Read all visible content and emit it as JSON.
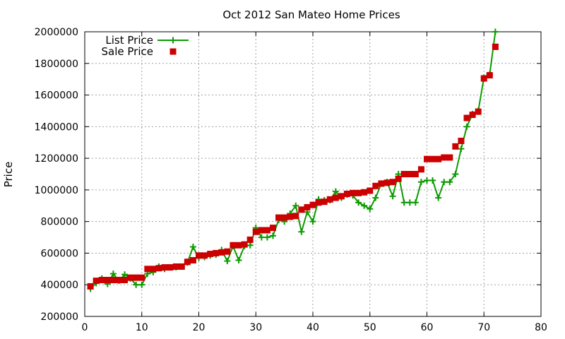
{
  "chart_data": {
    "type": "line",
    "title": "Oct 2012 San Mateo Home Prices",
    "xlabel": "",
    "ylabel": "Price",
    "xlim": [
      0,
      80
    ],
    "ylim": [
      200000,
      2000000
    ],
    "x_ticks": [
      0,
      10,
      20,
      30,
      40,
      50,
      60,
      70,
      80
    ],
    "y_ticks": [
      200000,
      400000,
      600000,
      800000,
      1000000,
      1200000,
      1400000,
      1600000,
      1800000,
      2000000
    ],
    "grid": true,
    "legend_position": "top-left",
    "series": [
      {
        "name": "List Price",
        "color": "#0b9b00",
        "marker": "plus",
        "line": true,
        "x": [
          1,
          2,
          3,
          4,
          5,
          6,
          7,
          8,
          9,
          10,
          11,
          12,
          13,
          14,
          15,
          16,
          17,
          18,
          19,
          20,
          21,
          22,
          23,
          24,
          25,
          26,
          27,
          28,
          29,
          30,
          31,
          32,
          33,
          34,
          35,
          36,
          37,
          38,
          39,
          40,
          41,
          42,
          43,
          44,
          45,
          46,
          47,
          48,
          49,
          50,
          51,
          52,
          53,
          54,
          55,
          56,
          57,
          58,
          59,
          60,
          61,
          62,
          63,
          64,
          65,
          66,
          67,
          68,
          69,
          70,
          71,
          72
        ],
        "y": [
          375000,
          410000,
          440000,
          405000,
          470000,
          425000,
          465000,
          440000,
          400000,
          400000,
          470000,
          480000,
          515000,
          500000,
          510000,
          510000,
          515000,
          540000,
          640000,
          570000,
          575000,
          585000,
          590000,
          620000,
          550000,
          645000,
          555000,
          645000,
          650000,
          760000,
          700000,
          700000,
          710000,
          810000,
          800000,
          850000,
          900000,
          735000,
          860000,
          800000,
          940000,
          935000,
          935000,
          990000,
          950000,
          970000,
          965000,
          920000,
          900000,
          880000,
          950000,
          1040000,
          1050000,
          960000,
          1100000,
          920000,
          920000,
          920000,
          1050000,
          1060000,
          1060000,
          950000,
          1050000,
          1050000,
          1100000,
          1260000,
          1400000,
          1480000,
          1500000,
          1710000,
          1730000,
          2000000
        ]
      },
      {
        "name": "Sale Price",
        "color": "#cc0000",
        "marker": "square",
        "line": false,
        "x": [
          1,
          2,
          3,
          4,
          5,
          6,
          7,
          8,
          9,
          10,
          11,
          12,
          13,
          14,
          15,
          16,
          17,
          18,
          19,
          20,
          21,
          22,
          23,
          24,
          25,
          26,
          27,
          28,
          29,
          30,
          31,
          32,
          33,
          34,
          35,
          36,
          37,
          38,
          39,
          40,
          41,
          42,
          43,
          44,
          45,
          46,
          47,
          48,
          49,
          50,
          51,
          52,
          53,
          54,
          55,
          56,
          57,
          58,
          59,
          60,
          61,
          62,
          63,
          64,
          65,
          66,
          67,
          68,
          69,
          70,
          71,
          72
        ],
        "y": [
          390000,
          425000,
          430000,
          430000,
          430000,
          430000,
          430000,
          445000,
          445000,
          445000,
          500000,
          500000,
          505000,
          510000,
          510000,
          515000,
          515000,
          545000,
          555000,
          585000,
          585000,
          595000,
          600000,
          605000,
          610000,
          650000,
          650000,
          655000,
          685000,
          735000,
          745000,
          745000,
          760000,
          825000,
          825000,
          830000,
          835000,
          875000,
          890000,
          905000,
          920000,
          925000,
          940000,
          950000,
          960000,
          975000,
          980000,
          980000,
          985000,
          995000,
          1025000,
          1040000,
          1045000,
          1050000,
          1070000,
          1100000,
          1100000,
          1100000,
          1130000,
          1195000,
          1195000,
          1195000,
          1205000,
          1205000,
          1275000,
          1310000,
          1455000,
          1475000,
          1495000,
          1705000,
          1725000,
          1905000
        ]
      }
    ]
  }
}
